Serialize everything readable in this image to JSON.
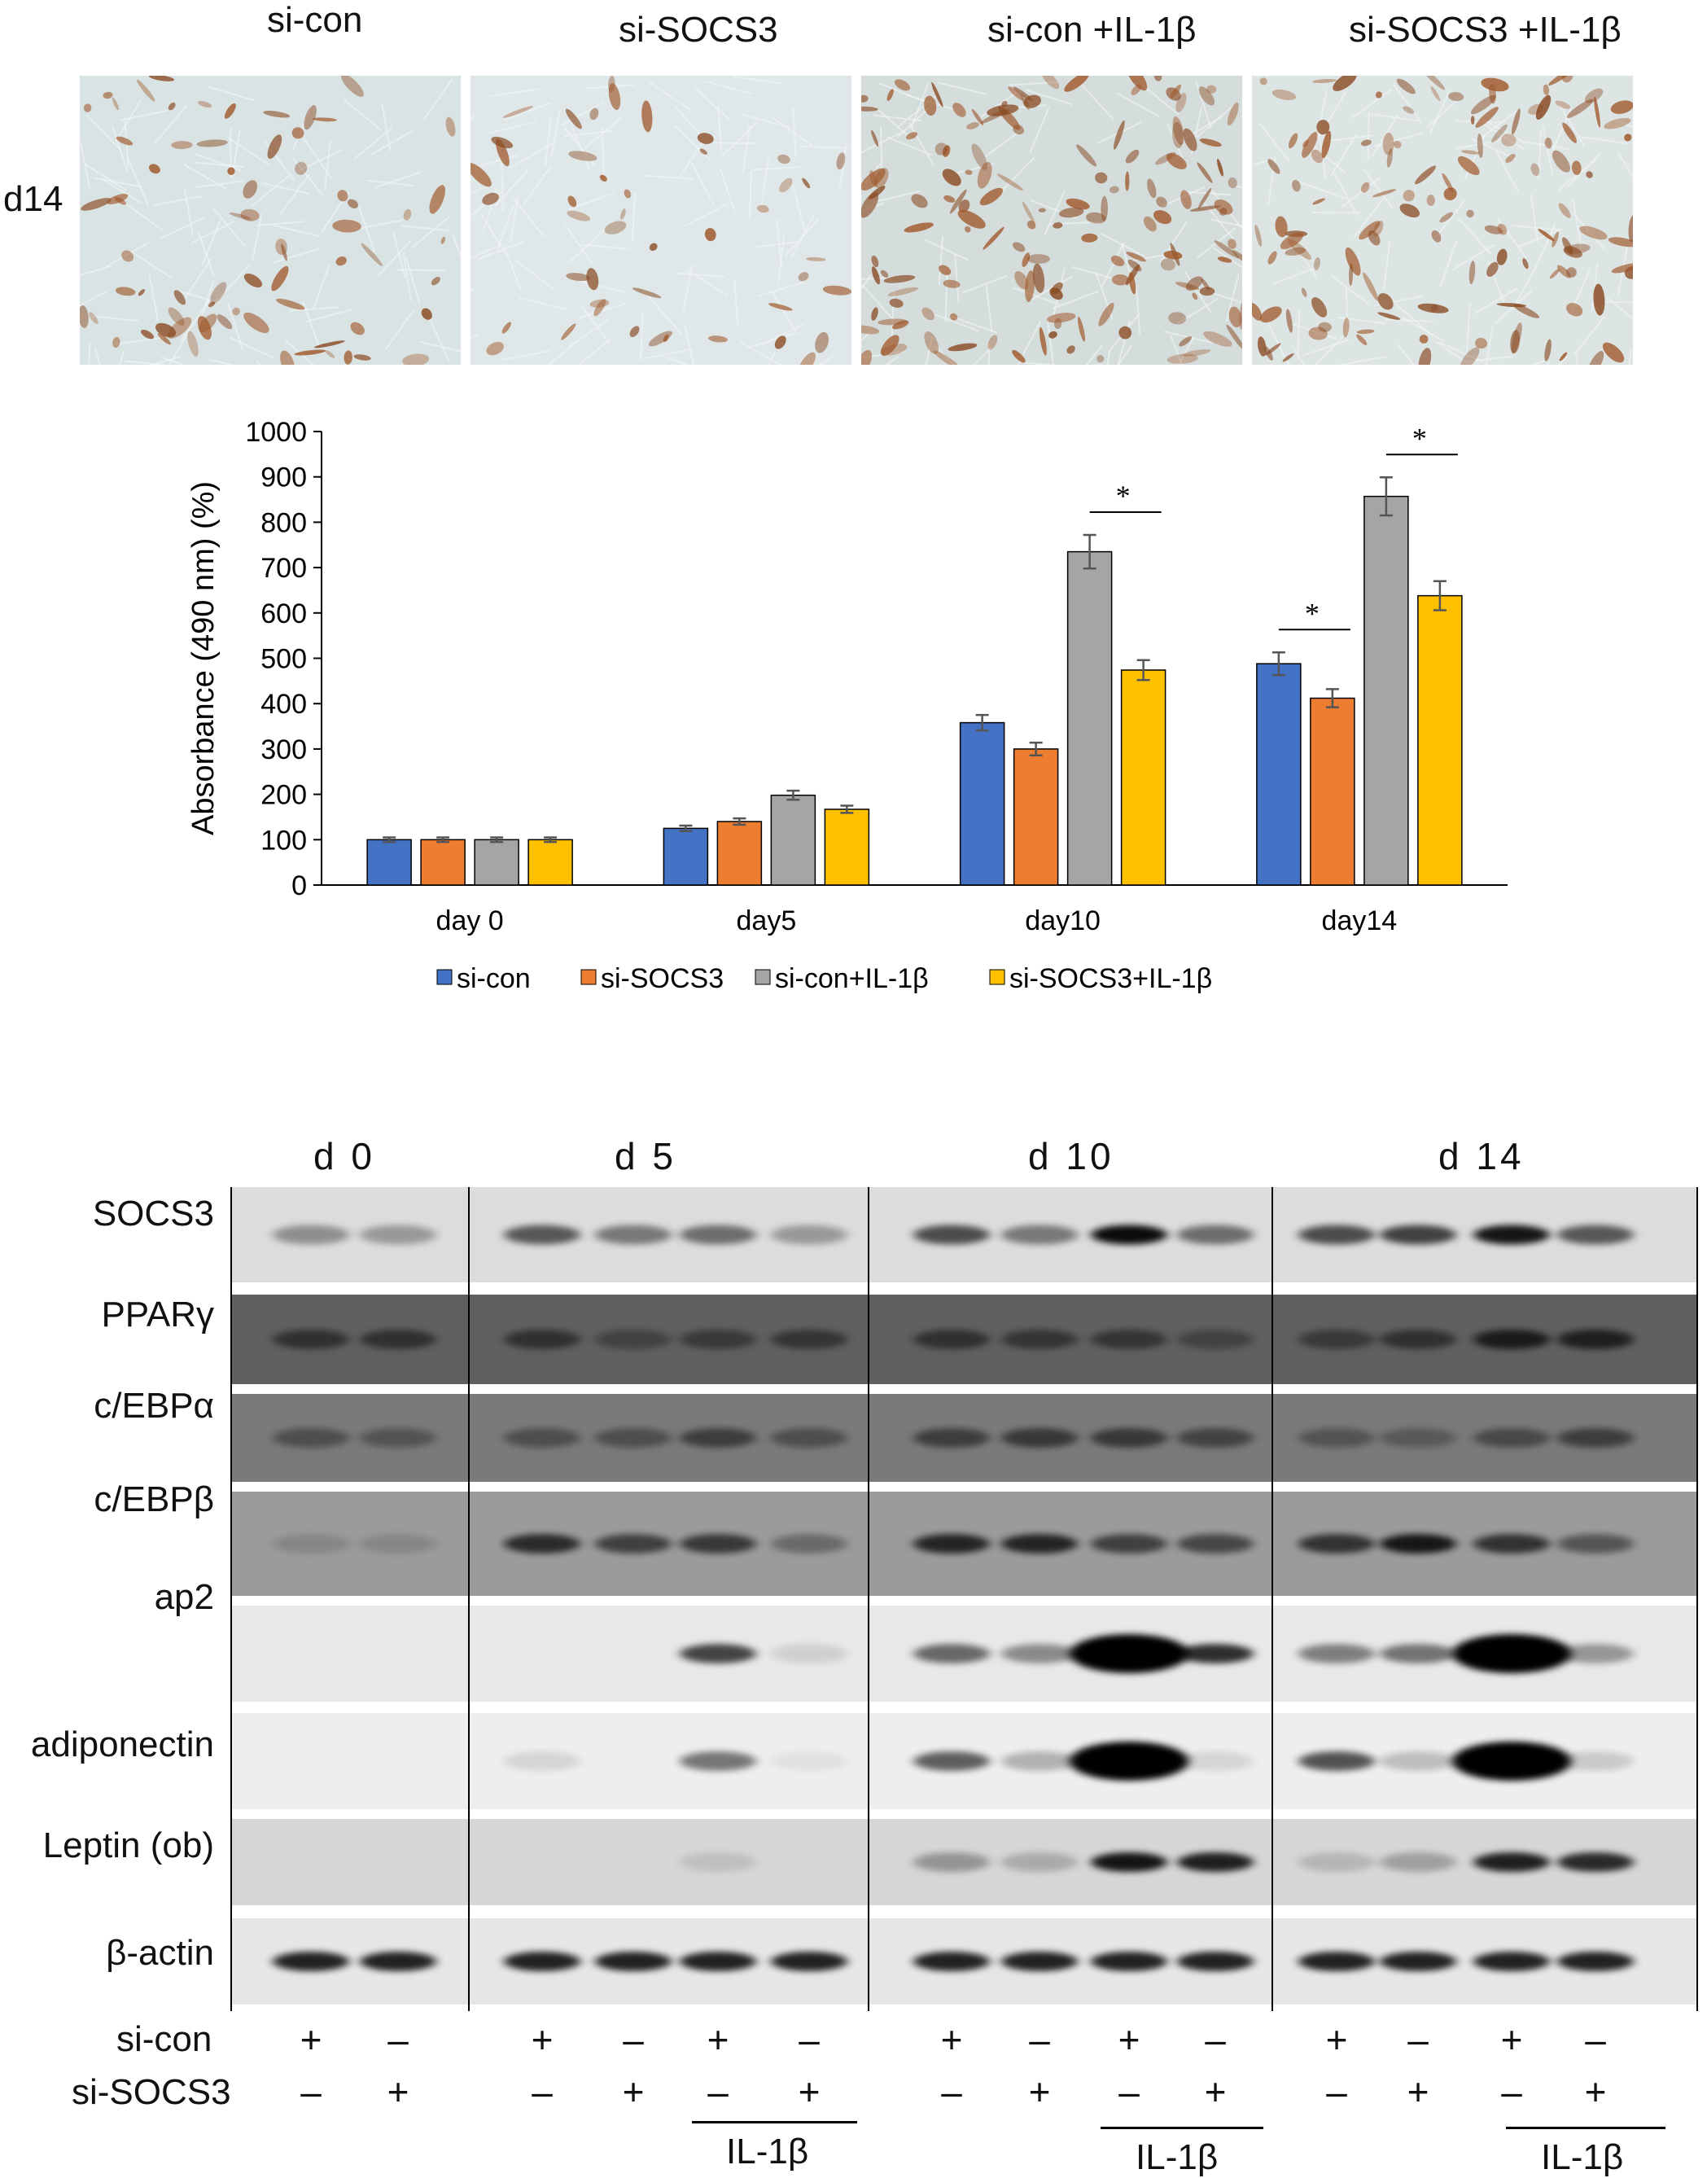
{
  "figure": {
    "top": {
      "condition_labels": [
        "si-con",
        "si-SOCS3",
        "si-con +IL-1β",
        "si-SOCS3 +IL-1β"
      ],
      "row_label": "d14"
    },
    "chart_data": {
      "type": "bar",
      "categories": [
        "day 0",
        "day5",
        "day10",
        "day14"
      ],
      "series": [
        {
          "name": "si-con",
          "values": [
            100,
            125,
            358,
            488
          ],
          "errors": [
            5,
            6,
            17,
            25
          ],
          "color": "#4472c4"
        },
        {
          "name": "si-SOCS3",
          "values": [
            100,
            140,
            300,
            412
          ],
          "errors": [
            5,
            7,
            14,
            20
          ],
          "color": "#ed7d31"
        },
        {
          "name": "si-con+IL-1β",
          "values": [
            100,
            198,
            735,
            857
          ],
          "errors": [
            5,
            10,
            37,
            42
          ],
          "color": "#a5a5a5"
        },
        {
          "name": "si-SOCS3+IL-1β",
          "values": [
            100,
            167,
            474,
            638
          ],
          "errors": [
            5,
            8,
            22,
            32
          ],
          "color": "#ffc000"
        }
      ],
      "significance": [
        {
          "category": "day10",
          "between": [
            "si-con+IL-1β",
            "si-SOCS3+IL-1β"
          ],
          "mark": "*"
        },
        {
          "category": "day14",
          "between": [
            "si-con",
            "si-SOCS3"
          ],
          "mark": "*"
        },
        {
          "category": "day14",
          "between": [
            "si-con+IL-1β",
            "si-SOCS3+IL-1β"
          ],
          "mark": "*"
        }
      ],
      "title": "",
      "xlabel": "",
      "ylabel": "Absorbance (490 nm) (%)",
      "ylim": [
        0,
        1000
      ],
      "yticks": [
        0,
        100,
        200,
        300,
        400,
        500,
        600,
        700,
        800,
        900,
        1000
      ],
      "grid": false,
      "legend_position": "bottom"
    },
    "western_blot": {
      "day_headers": [
        "d 0",
        "d 5",
        "d 10",
        "d 14"
      ],
      "proteins": [
        "SOCS3",
        "PPARγ",
        "c/EBPα",
        "c/EBPβ",
        "ap2",
        "adiponectin",
        "Leptin (ob)",
        "β-actin"
      ],
      "band_intensity": [
        [
          0.35,
          0.3,
          0.6,
          0.45,
          0.5,
          0.3,
          0.65,
          0.45,
          0.95,
          0.5,
          0.65,
          0.7,
          0.9,
          0.6
        ],
        [
          0.55,
          0.55,
          0.55,
          0.35,
          0.45,
          0.5,
          0.55,
          0.5,
          0.5,
          0.35,
          0.45,
          0.55,
          0.8,
          0.75
        ],
        [
          0.4,
          0.35,
          0.4,
          0.4,
          0.55,
          0.4,
          0.55,
          0.6,
          0.6,
          0.5,
          0.35,
          0.3,
          0.45,
          0.55
        ],
        [
          0.15,
          0.15,
          0.8,
          0.65,
          0.7,
          0.35,
          0.85,
          0.85,
          0.65,
          0.6,
          0.75,
          0.95,
          0.75,
          0.5
        ],
        [
          0.0,
          0.0,
          0.0,
          0.0,
          0.7,
          0.1,
          0.55,
          0.4,
          1.0,
          0.8,
          0.45,
          0.5,
          1.0,
          0.35
        ],
        [
          0.0,
          0.0,
          0.1,
          0.0,
          0.5,
          0.05,
          0.6,
          0.25,
          1.0,
          0.1,
          0.65,
          0.2,
          1.0,
          0.15
        ],
        [
          0.0,
          0.0,
          0.0,
          0.0,
          0.1,
          0.0,
          0.3,
          0.2,
          0.9,
          0.85,
          0.15,
          0.25,
          0.85,
          0.8
        ],
        [
          0.85,
          0.85,
          0.85,
          0.85,
          0.85,
          0.85,
          0.85,
          0.85,
          0.85,
          0.85,
          0.85,
          0.85,
          0.85,
          0.85
        ]
      ],
      "row_background": [
        "#dcdcdc",
        "#606060",
        "#7a7a7a",
        "#9b9b9b",
        "#e8e8e8",
        "#eeeeee",
        "#d6d6d6",
        "#e6e6e6"
      ],
      "treatment_rows": [
        {
          "label": "si-con",
          "signs": [
            "+",
            "–",
            "+",
            "–",
            "+",
            "–",
            "+",
            "–",
            "+",
            "–",
            "+",
            "–",
            "+",
            "–"
          ]
        },
        {
          "label": "si-SOCS3",
          "signs": [
            "–",
            "+",
            "–",
            "+",
            "–",
            "+",
            "–",
            "+",
            "–",
            "+",
            "–",
            "+",
            "–",
            "+"
          ]
        }
      ],
      "treatment_label": "IL-1β"
    }
  }
}
